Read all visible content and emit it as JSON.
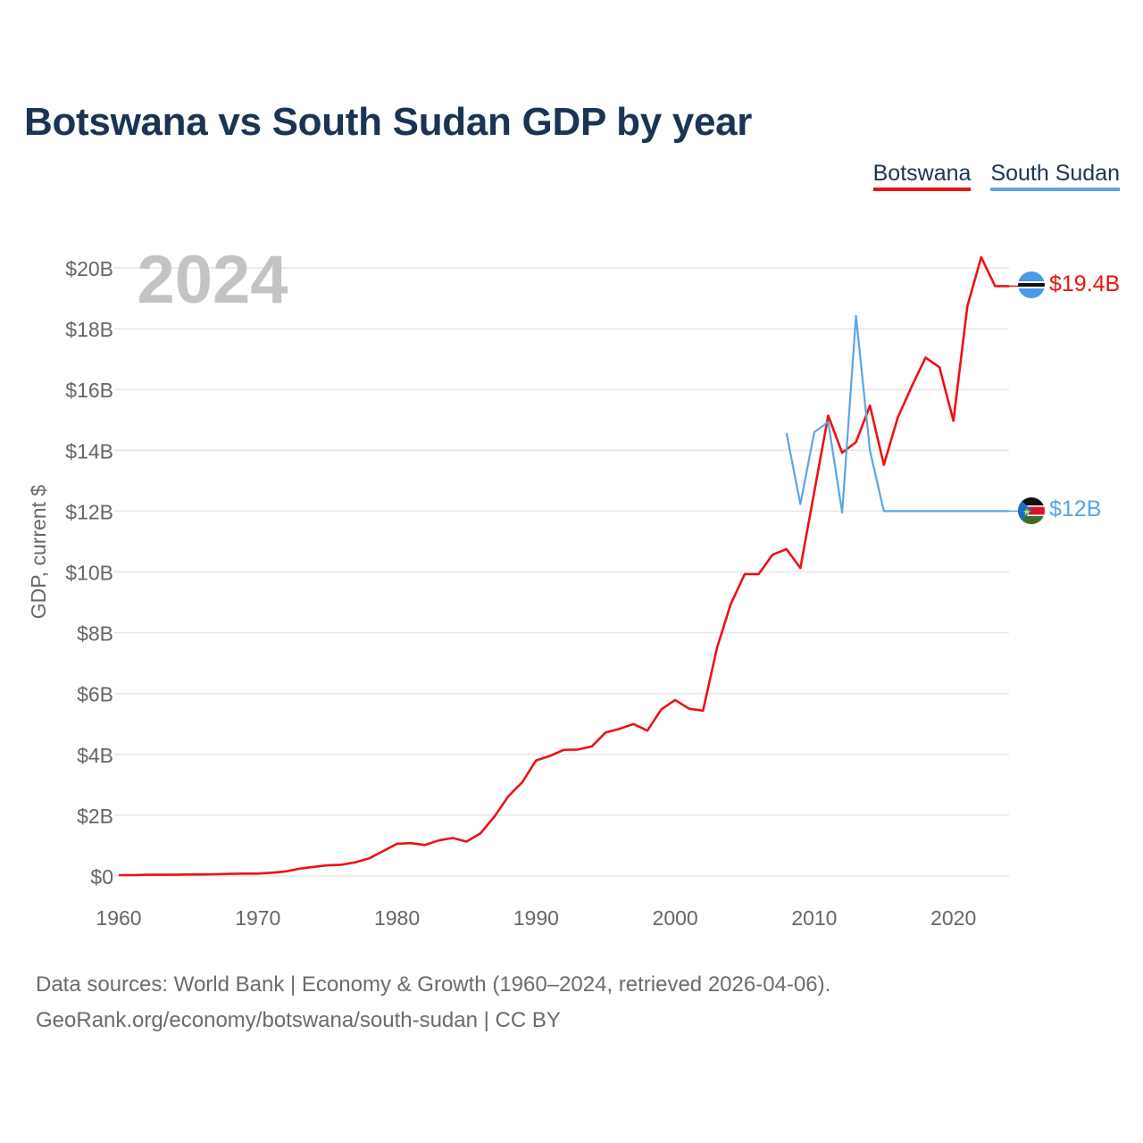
{
  "chart_data": {
    "type": "line",
    "title": "Botswana vs South Sudan GDP by year",
    "year_label": "2024",
    "ylabel": "GDP, current $",
    "xlabel": "",
    "xlim": [
      1960,
      2024
    ],
    "ylim": [
      0,
      20
    ],
    "y_unit": "billions of current US$",
    "x_ticks": [
      1960,
      1970,
      1980,
      1990,
      2000,
      2010,
      2020
    ],
    "y_ticks": [
      0,
      2,
      4,
      6,
      8,
      10,
      12,
      14,
      16,
      18,
      20
    ],
    "y_tick_labels": [
      "$0",
      "$2B",
      "$4B",
      "$6B",
      "$8B",
      "$10B",
      "$12B",
      "$14B",
      "$16B",
      "$18B",
      "$20B"
    ],
    "x_tick_labels": [
      "1960",
      "1970",
      "1980",
      "1990",
      "2000",
      "2010",
      "2020"
    ],
    "grid": true,
    "legend": "top-right",
    "series": [
      {
        "name": "Botswana",
        "color": "#ee1111",
        "end_label": "$19.4B",
        "flag": "botswana-flag",
        "x": [
          1960,
          1961,
          1962,
          1963,
          1964,
          1965,
          1966,
          1967,
          1968,
          1969,
          1970,
          1971,
          1972,
          1973,
          1974,
          1975,
          1976,
          1977,
          1978,
          1979,
          1980,
          1981,
          1982,
          1983,
          1984,
          1985,
          1986,
          1987,
          1988,
          1989,
          1990,
          1991,
          1992,
          1993,
          1994,
          1995,
          1996,
          1997,
          1998,
          1999,
          2000,
          2001,
          2002,
          2003,
          2004,
          2005,
          2006,
          2007,
          2008,
          2009,
          2010,
          2011,
          2012,
          2013,
          2014,
          2015,
          2016,
          2017,
          2018,
          2019,
          2020,
          2021,
          2022,
          2023,
          2024
        ],
        "y": [
          0.03,
          0.03,
          0.04,
          0.04,
          0.04,
          0.05,
          0.05,
          0.06,
          0.07,
          0.08,
          0.08,
          0.11,
          0.15,
          0.24,
          0.3,
          0.35,
          0.37,
          0.45,
          0.58,
          0.82,
          1.06,
          1.08,
          1.02,
          1.17,
          1.25,
          1.13,
          1.4,
          1.95,
          2.62,
          3.08,
          3.8,
          3.95,
          4.15,
          4.16,
          4.26,
          4.72,
          4.84,
          5.0,
          4.78,
          5.48,
          5.79,
          5.5,
          5.44,
          7.5,
          8.95,
          9.93,
          9.93,
          10.57,
          10.75,
          10.13,
          12.64,
          15.14,
          13.92,
          14.27,
          15.47,
          13.52,
          15.08,
          16.1,
          17.05,
          16.73,
          14.97,
          18.74,
          20.35,
          19.4,
          19.4
        ]
      },
      {
        "name": "South Sudan",
        "color": "#5aa5e6",
        "end_label": "$12B",
        "flag": "south-sudan-flag",
        "x": [
          2008,
          2009,
          2010,
          2011,
          2012,
          2013,
          2014,
          2015,
          2016,
          2017,
          2018,
          2019,
          2020,
          2021,
          2022,
          2023,
          2024
        ],
        "y": [
          14.56,
          12.23,
          14.6,
          14.93,
          11.95,
          18.42,
          13.99,
          12.0,
          12.0,
          12.0,
          12.0,
          12.0,
          12.0,
          12.0,
          12.0,
          12.0,
          12.0
        ]
      }
    ]
  },
  "footer": {
    "line1": "Data sources: World Bank | Economy & Growth (1960–2024, retrieved 2026-04-06).",
    "line2": "GeoRank.org/economy/botswana/south-sudan | CC BY"
  }
}
